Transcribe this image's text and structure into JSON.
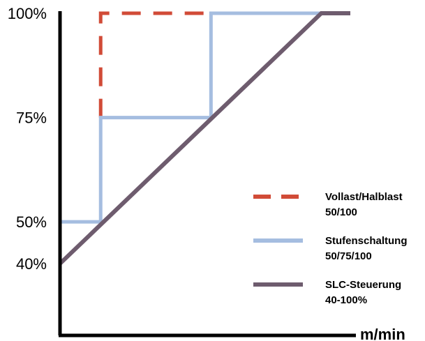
{
  "chart_data": {
    "type": "line",
    "title": "",
    "xlabel": "m/min",
    "ylabel": "",
    "ylim": [
      40,
      100
    ],
    "xlim": [
      0,
      10
    ],
    "grid": false,
    "legend_placement": "right",
    "y_ticks": [
      {
        "value": 100,
        "label": "100%"
      },
      {
        "value": 75,
        "label": "75%"
      },
      {
        "value": 50,
        "label": "50%"
      },
      {
        "value": 40,
        "label": "40%"
      }
    ],
    "series": [
      {
        "key": "vollast",
        "legend_line1": "Vollast/Halblast",
        "legend_line2": "50/100",
        "color": "#d14b37",
        "dashed": true,
        "points": [
          [
            1.4,
            75
          ],
          [
            1.4,
            100
          ],
          [
            5.2,
            100
          ]
        ]
      },
      {
        "key": "stufen",
        "legend_line1": "Stufenschaltung",
        "legend_line2": "50/75/100",
        "color": "#a5bde0",
        "dashed": false,
        "points": [
          [
            0,
            50
          ],
          [
            1.4,
            50
          ],
          [
            1.4,
            75
          ],
          [
            5.2,
            75
          ],
          [
            5.2,
            100
          ],
          [
            9,
            100
          ]
        ]
      },
      {
        "key": "slc",
        "legend_line1": "SLC-Steuerung",
        "legend_line2": "40-100%",
        "color": "#6e5c6e",
        "dashed": false,
        "points": [
          [
            0,
            40
          ],
          [
            9,
            100
          ],
          [
            10,
            100
          ]
        ]
      }
    ]
  }
}
